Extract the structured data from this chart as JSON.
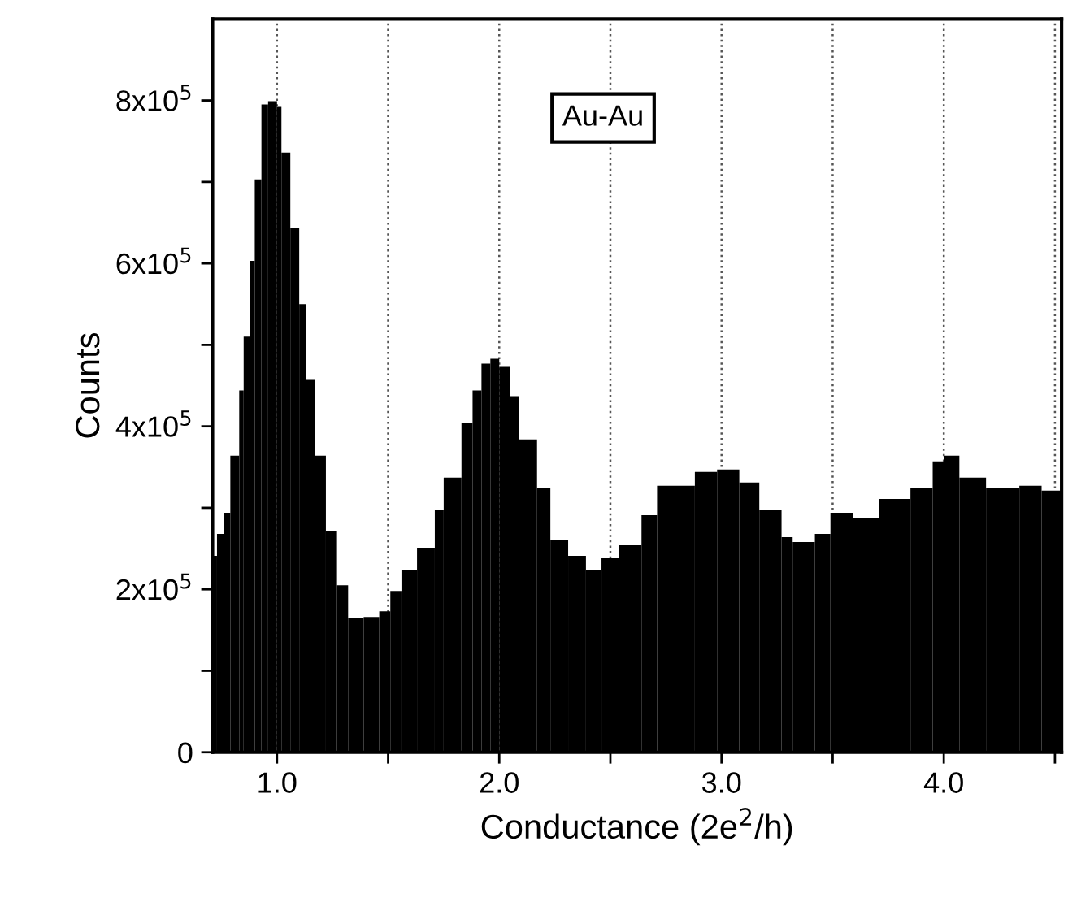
{
  "chart_data": {
    "type": "histogram",
    "xlabel": "Conductance (2e$^{2}$/h)",
    "ylabel": "Counts",
    "color": "#000000",
    "bins": [
      0.71,
      0.73,
      0.76,
      0.79,
      0.83,
      0.85,
      0.88,
      0.9,
      0.93,
      0.96,
      1.0,
      1.02,
      1.06,
      1.1,
      1.13,
      1.17,
      1.22,
      1.27,
      1.32,
      1.39,
      1.46,
      1.51,
      1.56,
      1.63,
      1.71,
      1.75,
      1.83,
      1.88,
      1.92,
      1.96,
      2.0,
      2.05,
      2.09,
      2.17,
      2.23,
      2.31,
      2.39,
      2.46,
      2.54,
      2.64,
      2.71,
      2.79,
      2.88,
      2.98,
      3.08,
      3.17,
      3.27,
      3.32,
      3.42,
      3.49,
      3.59,
      3.71,
      3.85,
      3.95,
      4.0,
      4.07,
      4.19,
      4.34,
      4.44,
      4.53
    ],
    "values": [
      241000,
      268000,
      294000,
      364000,
      444000,
      510000,
      603000,
      703000,
      795000,
      799000,
      792000,
      736000,
      643000,
      550000,
      457000,
      364000,
      271000,
      205000,
      165000,
      166000,
      173000,
      198000,
      224000,
      251000,
      297000,
      337000,
      404000,
      444000,
      477000,
      483000,
      473000,
      437000,
      384000,
      324000,
      261000,
      241000,
      224000,
      238000,
      254000,
      291000,
      327000,
      327000,
      344000,
      347000,
      331000,
      297000,
      264000,
      258000,
      268000,
      294000,
      288000,
      311000,
      324000,
      357000,
      364000,
      337000,
      324000,
      327000,
      321000
    ],
    "xlim": [
      0.71,
      4.53
    ],
    "ylim": [
      0,
      900000
    ],
    "xticks": [
      {
        "value": 1.0,
        "label": "1.0"
      },
      {
        "value": 1.5,
        "label": null
      },
      {
        "value": 2.0,
        "label": "2.0"
      },
      {
        "value": 2.5,
        "label": null
      },
      {
        "value": 3.0,
        "label": "3.0"
      },
      {
        "value": 3.5,
        "label": null
      },
      {
        "value": 4.0,
        "label": "4.0"
      },
      {
        "value": 4.5,
        "label": null
      }
    ],
    "yticks": [
      0,
      {
        "value": 100000,
        "label": null
      },
      {
        "value": 200000,
        "label": "2x10$^{5}$"
      },
      {
        "value": 300000,
        "label": null
      },
      {
        "value": 400000,
        "label": "4x10$^{5}$"
      },
      {
        "value": 500000,
        "label": null
      },
      {
        "value": 600000,
        "label": "6x10$^{5}$"
      },
      {
        "value": 700000,
        "label": null
      },
      {
        "value": 800000,
        "label": "8x10$^{5}$"
      }
    ],
    "grid": "x",
    "annotations": [
      "Au-Au"
    ]
  }
}
